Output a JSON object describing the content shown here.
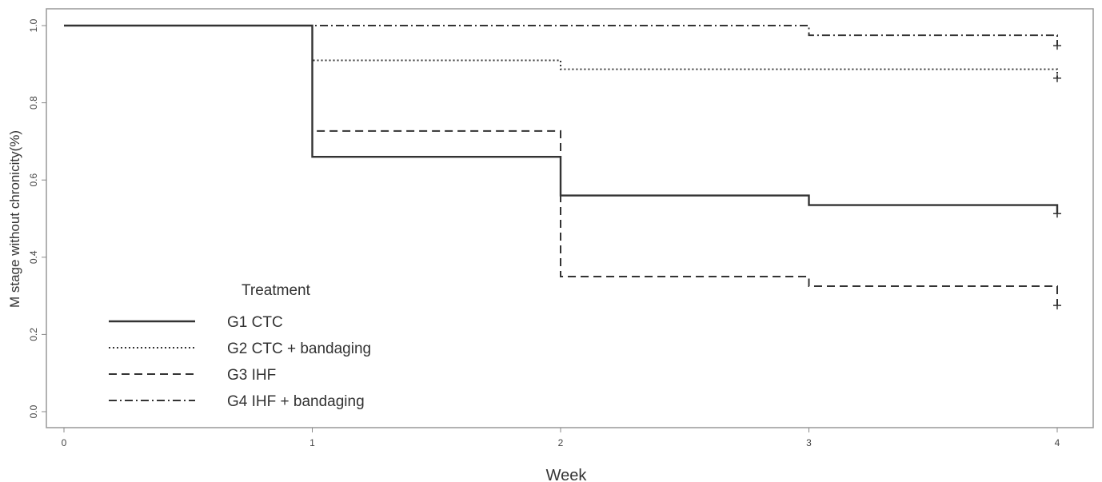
{
  "chart_data": {
    "type": "line",
    "step": true,
    "xlabel": "Week",
    "ylabel": "M stage without chronicity(%)",
    "xlim": [
      0,
      4
    ],
    "ylim": [
      0,
      1.0
    ],
    "x_ticks": [
      0,
      1,
      2,
      3,
      4
    ],
    "y_ticks": [
      "0.0",
      "0.2",
      "0.4",
      "0.6",
      "0.8",
      "1.0"
    ],
    "grid": false,
    "legend": {
      "title": "Treatment",
      "placement": "bottom-left"
    },
    "series": [
      {
        "name": "G1 CTC",
        "style": "solid",
        "steps": [
          {
            "x": 0,
            "y": 1.0
          },
          {
            "x": 1,
            "y": 0.66
          },
          {
            "x": 2,
            "y": 0.56
          },
          {
            "x": 3,
            "y": 0.535
          }
        ],
        "end_x": 4,
        "censor": {
          "x": 4,
          "y": 0.513
        }
      },
      {
        "name": "G2 CTC + bandaging",
        "style": "dotted",
        "steps": [
          {
            "x": 0,
            "y": 1.0
          },
          {
            "x": 1,
            "y": 0.91
          },
          {
            "x": 2,
            "y": 0.887
          }
        ],
        "end_x": 4,
        "censor": {
          "x": 4,
          "y": 0.864
        }
      },
      {
        "name": "G3 IHF",
        "style": "dashed",
        "steps": [
          {
            "x": 0,
            "y": 1.0
          },
          {
            "x": 1,
            "y": 0.727
          },
          {
            "x": 2,
            "y": 0.35
          },
          {
            "x": 3,
            "y": 0.325
          }
        ],
        "end_x": 4,
        "censor": {
          "x": 4,
          "y": 0.275
        }
      },
      {
        "name": "G4 IHF + bandaging",
        "style": "dashdot",
        "steps": [
          {
            "x": 0,
            "y": 1.0
          },
          {
            "x": 3,
            "y": 0.975
          }
        ],
        "end_x": 4,
        "censor": {
          "x": 4,
          "y": 0.948
        }
      }
    ]
  }
}
